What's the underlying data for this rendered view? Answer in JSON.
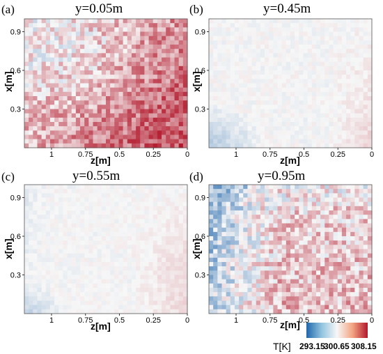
{
  "figure": {
    "colorbar": {
      "label": "T[K]",
      "ticks": [
        "293.15",
        "300.65",
        "308.15"
      ],
      "colors": [
        "#2166ac",
        "#f7f7f7",
        "#b2182b"
      ]
    }
  },
  "chart_data": [
    {
      "type": "heatmap",
      "panel": "(a)",
      "title": "y=0.05m",
      "xlabel": "z[m]",
      "ylabel": "x[m]",
      "xticks": [
        "1",
        "0.75",
        "0.5",
        "0.25",
        "0"
      ],
      "yticks": [
        "0.3",
        "0.6",
        "0.9"
      ],
      "x_reversed": true,
      "mean_temperature_K": 302.5,
      "description_of_field": "warm (red) dominated, strongest near z=0 and bottom"
    },
    {
      "type": "heatmap",
      "panel": "(b)",
      "title": "y=0.45m",
      "xlabel": "z[m]",
      "ylabel": "x[m]",
      "xticks": [
        "1",
        "0.75",
        "0.5",
        "0.25",
        "0"
      ],
      "yticks": [
        "0.3",
        "0.6",
        "0.9"
      ],
      "x_reversed": true,
      "mean_temperature_K": 300.9
    },
    {
      "type": "heatmap",
      "panel": "(c)",
      "title": "y=0.55m",
      "xlabel": "z[m]",
      "ylabel": "x[m]",
      "xticks": [
        "1",
        "0.75",
        "0.5",
        "0.25",
        "0"
      ],
      "yticks": [
        "0.3",
        "0.6",
        "0.9"
      ],
      "x_reversed": true,
      "mean_temperature_K": 301.0
    },
    {
      "type": "heatmap",
      "panel": "(d)",
      "title": "y=0.95m",
      "xlabel": "z[m]",
      "ylabel": "x[m]",
      "xticks": [
        "1",
        "0.75",
        "0.5",
        "0.25",
        "0"
      ],
      "yticks": [
        "0.3",
        "0.6",
        "0.9"
      ],
      "x_reversed": true,
      "mean_temperature_K": 300.2
    }
  ]
}
